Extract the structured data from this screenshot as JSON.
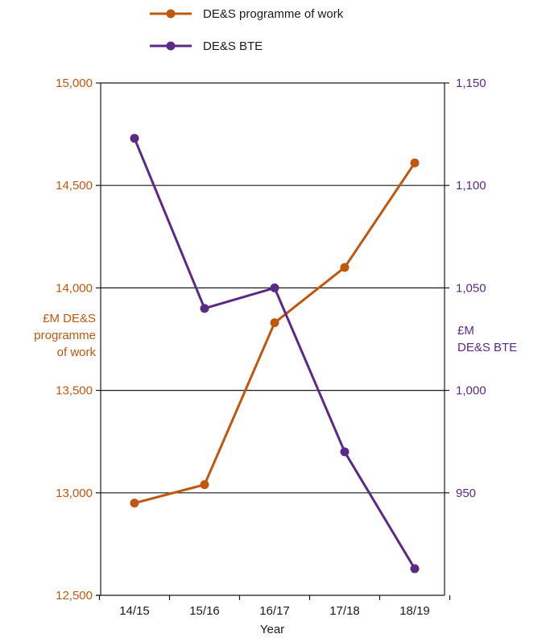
{
  "chart_data": {
    "type": "line",
    "categories": [
      "14/15",
      "15/16",
      "16/17",
      "17/18",
      "18/19"
    ],
    "xlabel": "Year",
    "ylabel_left": [
      "£M DE&S",
      "programme",
      "of work"
    ],
    "ylabel_right": [
      "£M",
      "DE&S BTE"
    ],
    "ylim_left": [
      12500,
      15000
    ],
    "ylim_right": [
      900,
      1150
    ],
    "yticks_left": [
      "12,500",
      "13,000",
      "13,500",
      "14,000",
      "14,500",
      "15,000"
    ],
    "yticks_right": [
      "950",
      "1,000",
      "1,050",
      "1,100",
      "1,150"
    ],
    "grid": true,
    "legend_position": "top-center",
    "series": [
      {
        "name": "DE&S programme of work",
        "axis": "left",
        "color": "#c0570f",
        "values": [
          12950,
          13040,
          13830,
          14100,
          14610
        ]
      },
      {
        "name": "DE&S BTE",
        "axis": "right",
        "color": "#5b2a86",
        "values": [
          1123,
          1040,
          1050,
          970,
          913
        ]
      }
    ]
  }
}
